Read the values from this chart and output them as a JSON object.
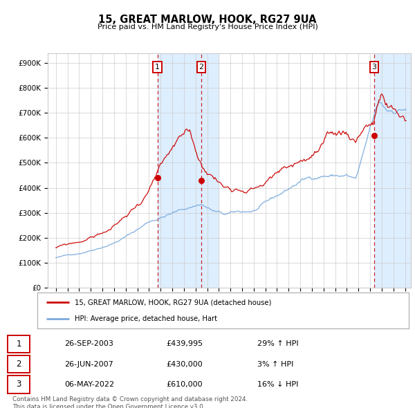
{
  "title": "15, GREAT MARLOW, HOOK, RG27 9UA",
  "subtitle": "Price paid vs. HM Land Registry's House Price Index (HPI)",
  "ylabel_ticks": [
    "£0",
    "£100K",
    "£200K",
    "£300K",
    "£400K",
    "£500K",
    "£600K",
    "£700K",
    "£800K",
    "£900K"
  ],
  "ytick_values": [
    0,
    100000,
    200000,
    300000,
    400000,
    500000,
    600000,
    700000,
    800000,
    900000
  ],
  "ylim": [
    0,
    940000
  ],
  "legend_line1": "15, GREAT MARLOW, HOOK, RG27 9UA (detached house)",
  "legend_line2": "HPI: Average price, detached house, Hart",
  "transaction1_date": "26-SEP-2003",
  "transaction1_price": "£439,995",
  "transaction1_hpi": "29% ↑ HPI",
  "transaction1_year": 2003.73,
  "transaction1_value": 439995,
  "transaction2_date": "26-JUN-2007",
  "transaction2_price": "£430,000",
  "transaction2_hpi": "3% ↑ HPI",
  "transaction2_year": 2007.5,
  "transaction2_value": 430000,
  "transaction3_date": "06-MAY-2022",
  "transaction3_price": "£610,000",
  "transaction3_hpi": "16% ↓ HPI",
  "transaction3_year": 2022.35,
  "transaction3_value": 610000,
  "footer": "Contains HM Land Registry data © Crown copyright and database right 2024.\nThis data is licensed under the Open Government Licence v3.0.",
  "red_color": "#cc0000",
  "blue_color": "#7aaadd",
  "shade_color": "#ddeeff",
  "grid_color": "#cccccc",
  "background_color": "#ffffff",
  "hpi_seed": 42,
  "red_seed": 99,
  "noise_scale_hpi": 0.006,
  "noise_scale_red": 0.009
}
